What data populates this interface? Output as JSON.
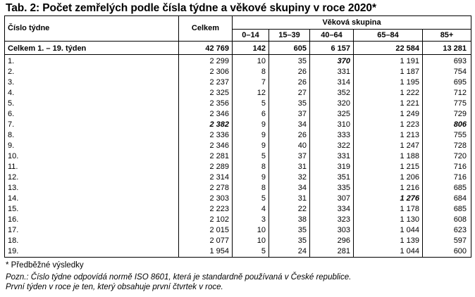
{
  "title": "Tab. 2: Počet zemřelých podle čísla týdne a věkové skupiny v roce 2020*",
  "headers": {
    "week": "Číslo týdne",
    "total": "Celkem",
    "age_group": "Věková skupina",
    "age_columns": [
      "0–14",
      "15–39",
      "40–64",
      "65–84",
      "85+"
    ]
  },
  "total_row": {
    "label": "Celkem 1. – 19. týden",
    "total": "42 769",
    "ages": [
      "142",
      "605",
      "6 157",
      "22 584",
      "13 281"
    ]
  },
  "rows": [
    {
      "week": "1.",
      "total": "2 299",
      "ages": [
        "10",
        "35",
        "370",
        "1 191",
        "693"
      ]
    },
    {
      "week": "2.",
      "total": "2 306",
      "ages": [
        "8",
        "26",
        "331",
        "1 187",
        "754"
      ]
    },
    {
      "week": "3.",
      "total": "2 237",
      "ages": [
        "7",
        "26",
        "314",
        "1 195",
        "695"
      ]
    },
    {
      "week": "4.",
      "total": "2 325",
      "ages": [
        "12",
        "27",
        "352",
        "1 222",
        "712"
      ]
    },
    {
      "week": "5.",
      "total": "2 356",
      "ages": [
        "5",
        "35",
        "320",
        "1 221",
        "775"
      ]
    },
    {
      "week": "6.",
      "total": "2 346",
      "ages": [
        "6",
        "37",
        "325",
        "1 249",
        "729"
      ]
    },
    {
      "week": "7.",
      "total": "2 382",
      "ages": [
        "9",
        "34",
        "310",
        "1 223",
        "806"
      ]
    },
    {
      "week": "8.",
      "total": "2 336",
      "ages": [
        "9",
        "26",
        "333",
        "1 213",
        "755"
      ]
    },
    {
      "week": "9.",
      "total": "2 346",
      "ages": [
        "9",
        "40",
        "322",
        "1 247",
        "728"
      ]
    },
    {
      "week": "10.",
      "total": "2 281",
      "ages": [
        "5",
        "37",
        "331",
        "1 188",
        "720"
      ]
    },
    {
      "week": "11.",
      "total": "2 289",
      "ages": [
        "8",
        "31",
        "319",
        "1 215",
        "716"
      ]
    },
    {
      "week": "12.",
      "total": "2 314",
      "ages": [
        "9",
        "32",
        "351",
        "1 206",
        "716"
      ]
    },
    {
      "week": "13.",
      "total": "2 278",
      "ages": [
        "8",
        "34",
        "335",
        "1 216",
        "685"
      ]
    },
    {
      "week": "14.",
      "total": "2 303",
      "ages": [
        "5",
        "31",
        "307",
        "1 276",
        "684"
      ]
    },
    {
      "week": "15.",
      "total": "2 223",
      "ages": [
        "4",
        "22",
        "334",
        "1 178",
        "685"
      ]
    },
    {
      "week": "16.",
      "total": "2 102",
      "ages": [
        "3",
        "38",
        "323",
        "1 130",
        "608"
      ]
    },
    {
      "week": "17.",
      "total": "2 015",
      "ages": [
        "10",
        "35",
        "303",
        "1 044",
        "623"
      ]
    },
    {
      "week": "18.",
      "total": "2 077",
      "ages": [
        "10",
        "35",
        "296",
        "1 139",
        "597"
      ]
    },
    {
      "week": "19.",
      "total": "1 954",
      "ages": [
        "5",
        "24",
        "281",
        "1 044",
        "600"
      ]
    }
  ],
  "highlights": {
    "week7_total": true,
    "week1_40_64": true,
    "week14_65_84": true,
    "week7_85plus": true
  },
  "notes": {
    "preliminary": "* Předběžné výsledky",
    "iso": "Pozn.: Číslo týdne odpovídá normě ISO 8601, která je standardně používaná v České republice.",
    "first_week": "První týden v roce je ten, který obsahuje první čtvrtek v roce."
  }
}
